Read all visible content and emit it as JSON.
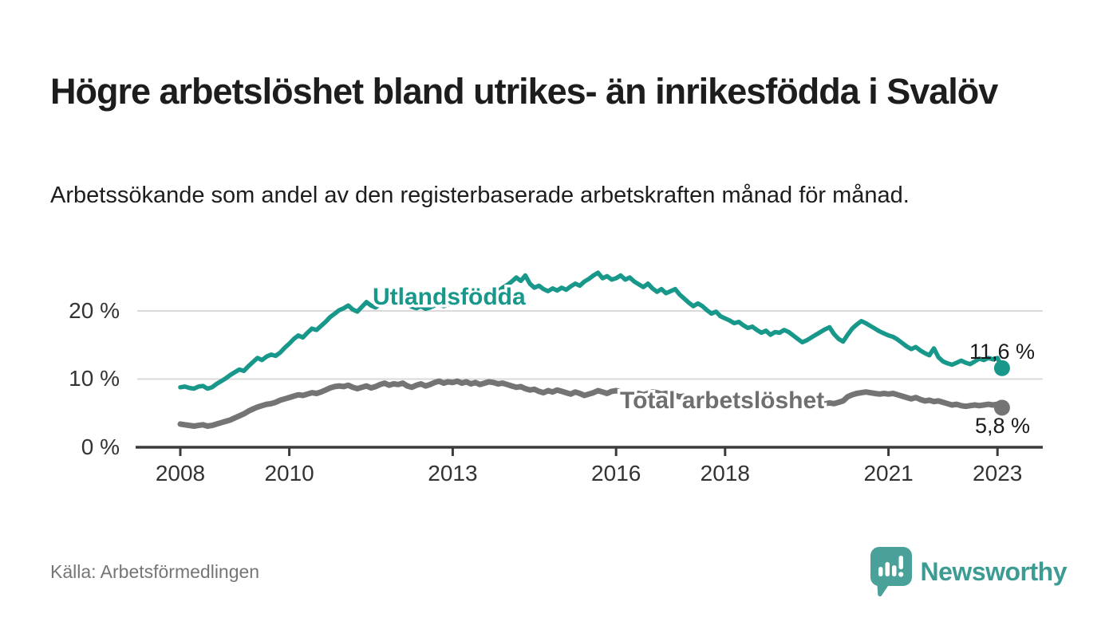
{
  "header": {
    "title": "Högre arbetslöshet bland utrikes- än inrikesfödda i Svalöv",
    "subtitle": "Arbetssökande som andel av den registerbaserade arbetskraften månad för månad."
  },
  "chart_data": {
    "type": "line",
    "frequency": "monthly",
    "x_range": "2008-01 to 2023-02",
    "unit": "%",
    "ylim": [
      0,
      27
    ],
    "grid": "horizontal",
    "y_ticks": [
      {
        "value": 0,
        "label": "0 %"
      },
      {
        "value": 10,
        "label": "10 %"
      },
      {
        "value": 20,
        "label": "20 %"
      }
    ],
    "x_ticks": [
      {
        "year": 2008,
        "label": "2008"
      },
      {
        "year": 2010,
        "label": "2010"
      },
      {
        "year": 2013,
        "label": "2013"
      },
      {
        "year": 2016,
        "label": "2016"
      },
      {
        "year": 2018,
        "label": "2018"
      },
      {
        "year": 2021,
        "label": "2021"
      },
      {
        "year": 2023,
        "label": "2023"
      }
    ],
    "series": [
      {
        "name": "Utlandsfödda",
        "color": "#18988b",
        "label_color": "#17988b",
        "stroke_width": 5.5,
        "end_label": "11,6 %",
        "end_value": 11.6,
        "values": [
          8.8,
          8.9,
          8.7,
          8.6,
          8.9,
          9.0,
          8.6,
          8.8,
          9.3,
          9.7,
          10.1,
          10.6,
          11.0,
          11.4,
          11.2,
          11.9,
          12.5,
          13.1,
          12.8,
          13.3,
          13.6,
          13.4,
          13.9,
          14.6,
          15.2,
          15.9,
          16.4,
          16.1,
          16.8,
          17.4,
          17.2,
          17.8,
          18.4,
          19.1,
          19.6,
          20.1,
          20.4,
          20.8,
          20.2,
          19.9,
          20.6,
          21.3,
          20.8,
          20.5,
          21.0,
          21.6,
          22.3,
          22.5,
          22.1,
          21.6,
          21.0,
          20.6,
          20.4,
          20.7,
          20.3,
          20.5,
          20.8,
          21.1,
          20.7,
          20.9,
          21.1,
          21.4,
          21.0,
          21.5,
          21.9,
          22.3,
          22.0,
          22.5,
          22.8,
          23.2,
          22.9,
          23.4,
          23.8,
          24.3,
          24.9,
          24.4,
          25.2,
          24.0,
          23.4,
          23.7,
          23.2,
          22.9,
          23.3,
          23.0,
          23.4,
          23.1,
          23.6,
          24.0,
          23.7,
          24.3,
          24.7,
          25.2,
          25.6,
          24.8,
          25.1,
          24.6,
          24.8,
          25.2,
          24.6,
          24.9,
          24.3,
          23.9,
          23.5,
          24.0,
          23.3,
          22.8,
          23.2,
          22.6,
          22.9,
          23.2,
          22.4,
          21.8,
          21.2,
          20.7,
          21.1,
          20.7,
          20.1,
          19.6,
          19.9,
          19.2,
          18.9,
          18.6,
          18.2,
          18.4,
          17.9,
          17.5,
          17.7,
          17.2,
          16.8,
          17.1,
          16.5,
          16.9,
          16.8,
          17.2,
          16.9,
          16.4,
          15.9,
          15.4,
          15.7,
          16.1,
          16.5,
          16.9,
          17.3,
          17.6,
          16.6,
          15.9,
          15.5,
          16.5,
          17.4,
          18.0,
          18.5,
          18.2,
          17.8,
          17.4,
          17.0,
          16.7,
          16.4,
          16.2,
          15.8,
          15.3,
          14.8,
          14.4,
          14.7,
          14.2,
          13.8,
          13.5,
          14.5,
          13.2,
          12.6,
          12.3,
          12.1,
          12.4,
          12.7,
          12.4,
          12.2,
          12.6,
          13.0,
          12.8,
          13.1,
          12.9,
          13.1,
          11.6
        ]
      },
      {
        "name": "Total arbetslöshet",
        "color": "#747474",
        "label_color": "#6f6f6f",
        "stroke_width": 7,
        "end_label": "5,8 %",
        "end_value": 5.8,
        "values": [
          3.4,
          3.3,
          3.2,
          3.1,
          3.2,
          3.3,
          3.1,
          3.2,
          3.4,
          3.6,
          3.8,
          4.0,
          4.3,
          4.6,
          4.9,
          5.3,
          5.6,
          5.9,
          6.1,
          6.3,
          6.4,
          6.6,
          6.9,
          7.1,
          7.3,
          7.5,
          7.7,
          7.6,
          7.8,
          8.0,
          7.9,
          8.1,
          8.4,
          8.7,
          8.9,
          9.0,
          8.9,
          9.1,
          8.8,
          8.6,
          8.8,
          9.0,
          8.7,
          8.9,
          9.2,
          9.4,
          9.1,
          9.3,
          9.2,
          9.4,
          9.0,
          8.8,
          9.1,
          9.3,
          9.0,
          9.2,
          9.5,
          9.7,
          9.4,
          9.6,
          9.5,
          9.7,
          9.4,
          9.6,
          9.3,
          9.5,
          9.2,
          9.4,
          9.6,
          9.5,
          9.3,
          9.4,
          9.2,
          9.0,
          8.8,
          8.9,
          8.6,
          8.4,
          8.5,
          8.2,
          8.0,
          8.3,
          8.1,
          8.4,
          8.2,
          8.0,
          7.8,
          8.1,
          7.9,
          7.6,
          7.8,
          8.0,
          8.3,
          8.1,
          7.9,
          8.2,
          8.3,
          8.1,
          7.9,
          8.0,
          7.8,
          7.9,
          7.7,
          7.9,
          8.1,
          8.0,
          7.8,
          7.9,
          7.8,
          7.6,
          7.4,
          7.5,
          7.3,
          7.2,
          7.3,
          7.1,
          7.0,
          7.2,
          7.0,
          7.1,
          7.0,
          6.9,
          6.7,
          6.8,
          6.6,
          6.5,
          6.6,
          6.4,
          6.3,
          6.5,
          6.4,
          6.5,
          6.4,
          6.3,
          6.2,
          6.3,
          6.2,
          6.1,
          6.2,
          6.3,
          6.2,
          6.3,
          6.4,
          6.5,
          6.4,
          6.6,
          6.8,
          7.4,
          7.7,
          7.9,
          8.0,
          8.1,
          8.0,
          7.9,
          7.8,
          7.9,
          7.8,
          7.9,
          7.7,
          7.5,
          7.3,
          7.1,
          7.3,
          7.0,
          6.8,
          6.9,
          6.7,
          6.8,
          6.6,
          6.4,
          6.2,
          6.3,
          6.1,
          6.0,
          6.1,
          6.2,
          6.1,
          6.2,
          6.3,
          6.2,
          6.3,
          5.8
        ]
      }
    ]
  },
  "footer": {
    "source": "Källa: Arbetsförmedlingen",
    "brand": "Newsworthy",
    "brand_color": "#3c9b93",
    "brand_icon": "speech-bubble-bar-chart"
  }
}
